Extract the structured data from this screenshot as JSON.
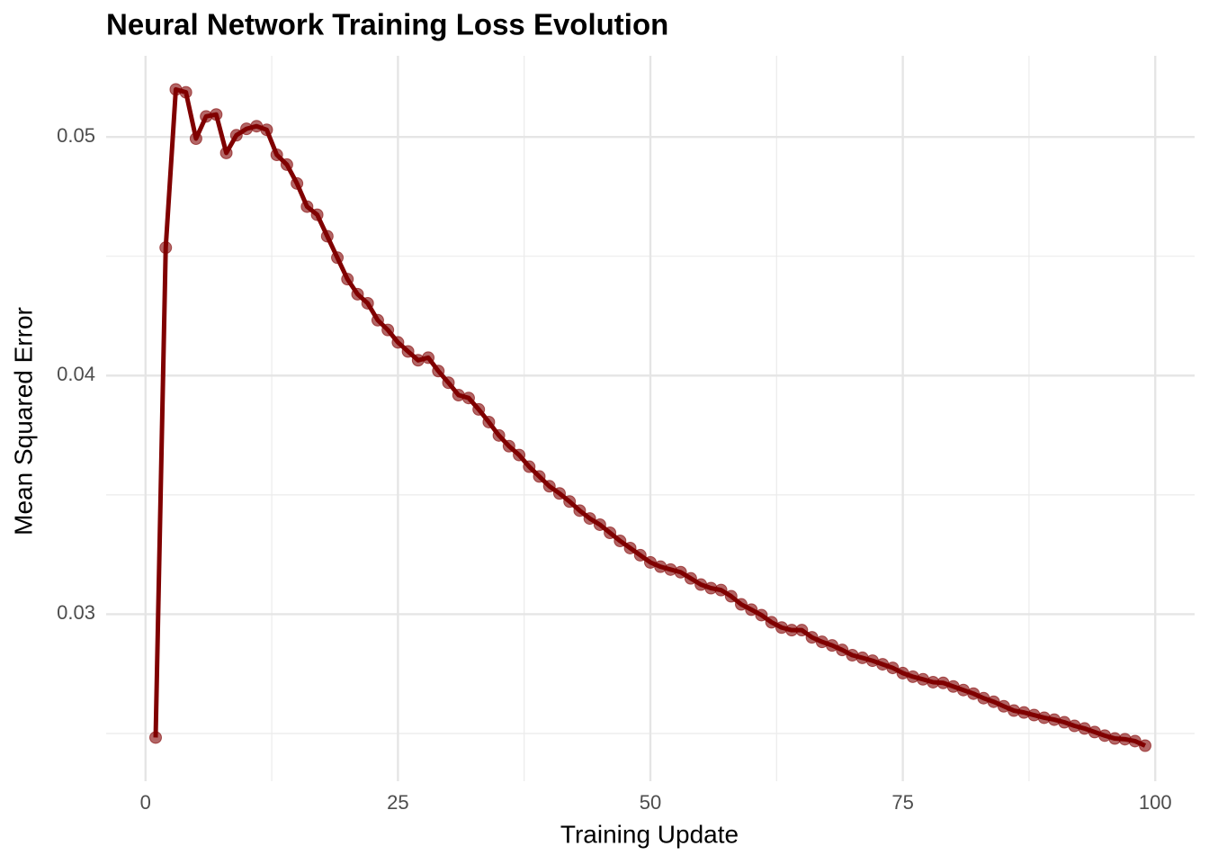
{
  "chart_data": {
    "type": "line",
    "title": "Neural Network Training Loss Evolution",
    "x_label": "Training Update",
    "y_label": "Mean Squared Error",
    "color": "#800000",
    "grid": true,
    "x": [
      1,
      2,
      3,
      4,
      5,
      6,
      7,
      8,
      9,
      10,
      11,
      12,
      13,
      14,
      15,
      16,
      17,
      18,
      19,
      20,
      21,
      22,
      23,
      24,
      25,
      26,
      27,
      28,
      29,
      30,
      31,
      32,
      33,
      34,
      35,
      36,
      37,
      38,
      39,
      40,
      41,
      42,
      43,
      44,
      45,
      46,
      47,
      48,
      49,
      50,
      51,
      52,
      53,
      54,
      55,
      56,
      57,
      58,
      59,
      60,
      61,
      62,
      63,
      64,
      65,
      66,
      67,
      68,
      69,
      70,
      71,
      72,
      73,
      74,
      75,
      76,
      77,
      78,
      79,
      80,
      81,
      82,
      83,
      84,
      85,
      86,
      87,
      88,
      89,
      90,
      91,
      92,
      93,
      94,
      95,
      96,
      97,
      98,
      99
    ],
    "values": [
      0.02483,
      0.04536,
      0.05199,
      0.05187,
      0.04993,
      0.05086,
      0.05094,
      0.04933,
      0.05007,
      0.05034,
      0.05045,
      0.0503,
      0.04925,
      0.04884,
      0.04805,
      0.04708,
      0.04674,
      0.04584,
      0.04494,
      0.04404,
      0.04341,
      0.04303,
      0.04232,
      0.04191,
      0.04139,
      0.04101,
      0.04064,
      0.04075,
      0.04019,
      0.0397,
      0.03918,
      0.03906,
      0.03858,
      0.03805,
      0.03749,
      0.03704,
      0.03667,
      0.03618,
      0.03577,
      0.03536,
      0.03506,
      0.03472,
      0.03434,
      0.03401,
      0.03375,
      0.03341,
      0.03307,
      0.03277,
      0.03247,
      0.03217,
      0.03199,
      0.03187,
      0.03176,
      0.0315,
      0.03124,
      0.03109,
      0.03101,
      0.03075,
      0.03041,
      0.03019,
      0.02996,
      0.02966,
      0.02944,
      0.02933,
      0.02933,
      0.02903,
      0.02884,
      0.02869,
      0.0285,
      0.02828,
      0.02817,
      0.02805,
      0.0279,
      0.02775,
      0.02753,
      0.02738,
      0.02727,
      0.02715,
      0.02712,
      0.02697,
      0.02682,
      0.02667,
      0.02648,
      0.02633,
      0.02614,
      0.02596,
      0.02588,
      0.02577,
      0.02566,
      0.02558,
      0.02547,
      0.02532,
      0.02521,
      0.02506,
      0.02491,
      0.02479,
      0.02476,
      0.02468,
      0.02449
    ],
    "xlim": [
      -3.9,
      103.9
    ],
    "xticks": [
      0,
      25,
      50,
      75,
      100
    ],
    "xminor": [
      12.5,
      37.5,
      62.5,
      87.5
    ],
    "ylim": [
      0.023,
      0.0534
    ],
    "yticks": [
      0.03,
      0.04,
      0.05
    ],
    "yminor": [
      0.025,
      0.035,
      0.045
    ]
  }
}
